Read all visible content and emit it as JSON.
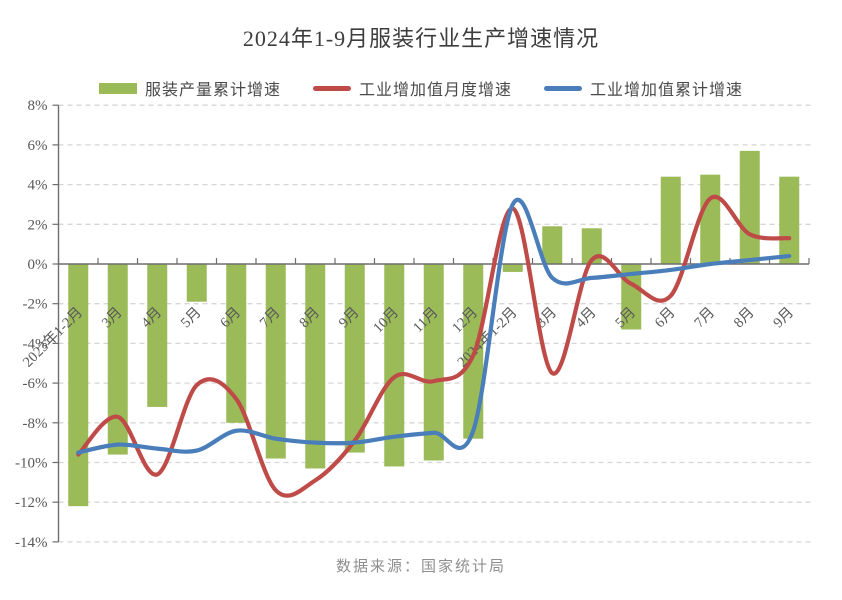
{
  "title": "2024年1-9月服装行业生产增速情况",
  "footer": {
    "source": "数据来源：国家统计局"
  },
  "chart_data": {
    "type": "combo",
    "categories": [
      "2023年1-2月",
      "3月",
      "4月",
      "5月",
      "6月",
      "7月",
      "8月",
      "9月",
      "10月",
      "11月",
      "12月",
      "2024年1-2月",
      "3月",
      "4月",
      "5月",
      "6月",
      "7月",
      "8月",
      "9月"
    ],
    "series": [
      {
        "name": "服装产量累计增速",
        "type": "bar",
        "color": "#9BBB59",
        "values": [
          -12.2,
          -9.6,
          -7.2,
          -1.9,
          -8.0,
          -9.8,
          -10.3,
          -9.5,
          -10.2,
          -9.9,
          -8.8,
          -0.4,
          1.9,
          1.8,
          -3.3,
          4.4,
          4.5,
          5.7,
          4.4
        ]
      },
      {
        "name": "工业增加值月度增速",
        "type": "line",
        "color": "#BE4B48",
        "values": [
          -9.6,
          -7.7,
          -10.6,
          -6.1,
          -6.8,
          -11.4,
          -10.9,
          -8.9,
          -5.7,
          -5.9,
          -4.6,
          2.8,
          -5.5,
          0.2,
          -1.0,
          -1.6,
          3.3,
          1.5,
          1.3
        ]
      },
      {
        "name": "工业增加值累计增速",
        "type": "line",
        "color": "#4A7EBB",
        "values": [
          -9.5,
          -9.1,
          -9.3,
          -9.4,
          -8.4,
          -8.8,
          -9.0,
          -9.0,
          -8.7,
          -8.5,
          -8.4,
          3.0,
          -0.7,
          -0.7,
          -0.5,
          -0.3,
          0.0,
          0.2,
          0.4
        ]
      }
    ],
    "ylim": [
      -14,
      8
    ],
    "ytick_step": 2,
    "y_tick_labels": [
      "8%",
      "6%",
      "4%",
      "2%",
      "0%",
      "-2%",
      "-4%",
      "-6%",
      "-8%",
      "-10%",
      "-12%",
      "-14%"
    ],
    "grid": "dashed-horizontal",
    "legend_position": "top",
    "colors": {
      "grid_line": "#d6d6d6",
      "axis_line": "#6e6e6e",
      "tick_label": "#595959",
      "title_text": "#3d3d3d",
      "source_text": "#8e8e8e"
    }
  }
}
